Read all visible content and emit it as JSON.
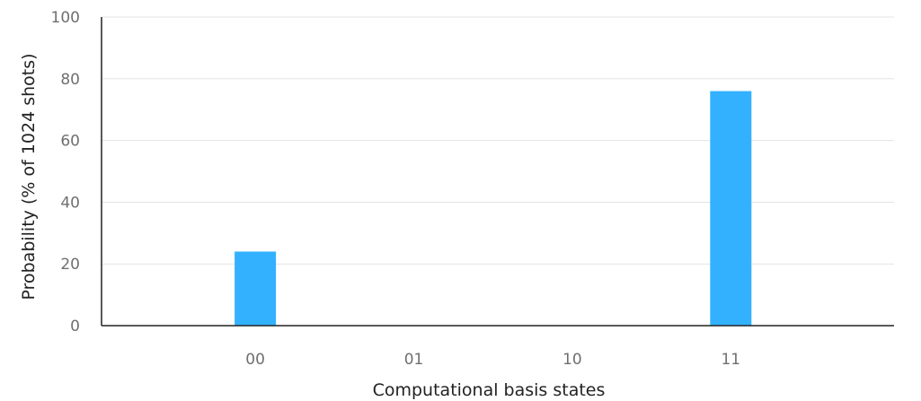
{
  "chart_data": {
    "type": "bar",
    "categories": [
      "00",
      "01",
      "10",
      "11"
    ],
    "values": [
      24,
      0,
      0,
      76
    ],
    "xlabel": "Computational basis states",
    "ylabel": "Probability (% of 1024 shots)",
    "ylim": [
      0,
      100
    ],
    "yticks": [
      0,
      20,
      40,
      60,
      80,
      100
    ],
    "grid": true,
    "bar_color": "#33b1ff"
  }
}
